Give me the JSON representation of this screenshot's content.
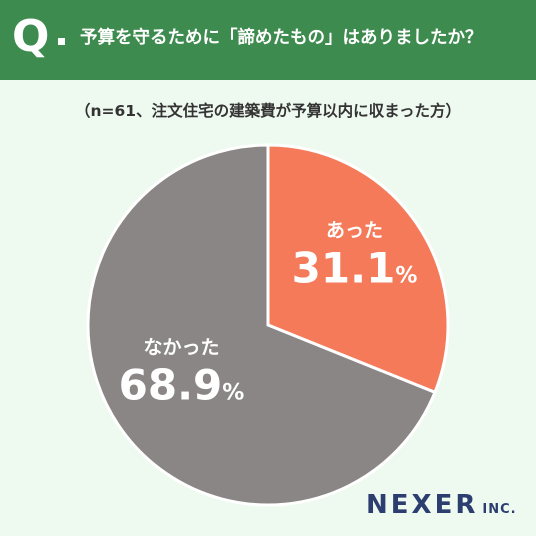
{
  "header": {
    "q_label": "Q",
    "question": "予算を守るために「諦めたもの」はありましたか？",
    "background_color": "#3d8b4e"
  },
  "note": "（n=61、注文住宅の建築費が予算以内に収まった方）",
  "chart_data": {
    "type": "pie",
    "categories": [
      "あった",
      "なかった"
    ],
    "values": [
      31.1,
      68.9
    ],
    "value_labels": [
      "31.1",
      "68.9"
    ],
    "unit": "%",
    "colors": [
      "#f47a5a",
      "#8b8686"
    ]
  },
  "logo": {
    "main": "NEXER",
    "sub": "INC."
  }
}
